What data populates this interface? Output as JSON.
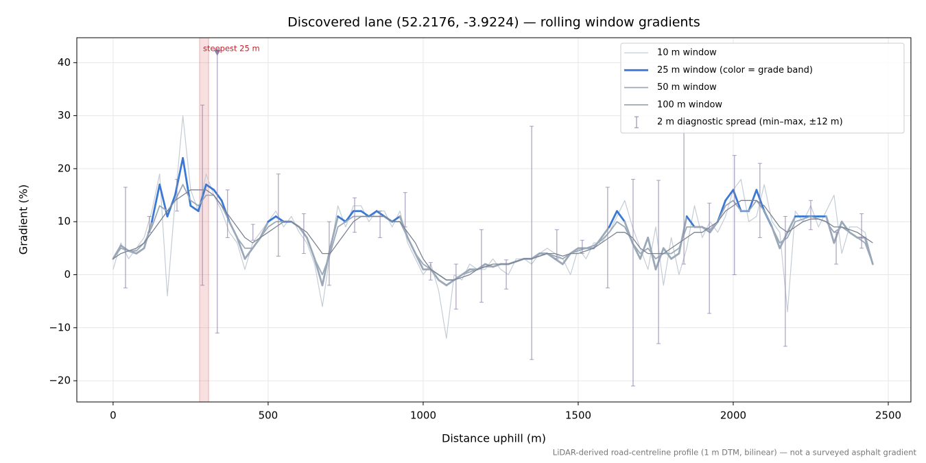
{
  "chart_data": {
    "type": "line",
    "title": "Discovered lane (52.2176, -3.9224) — rolling window gradients",
    "xlabel": "Distance uphill (m)",
    "ylabel": "Gradient (%)",
    "footnote": "LiDAR-derived road-centreline profile (1 m DTM, bilinear) — not a surveyed asphalt gradient",
    "xlim": [
      -117,
      2573
    ],
    "ylim": [
      -24,
      44.7
    ],
    "xticks": [
      0,
      500,
      1000,
      1500,
      2000,
      2500
    ],
    "yticks": [
      {
        "value": -20,
        "label": "−20"
      },
      {
        "value": -10,
        "label": "−10"
      },
      0,
      10,
      20,
      30,
      40
    ],
    "grid": true,
    "legend": "upper right",
    "x": [
      0,
      25,
      50,
      75,
      100,
      125,
      150,
      175,
      200,
      225,
      250,
      275,
      300,
      325,
      350,
      375,
      400,
      425,
      450,
      475,
      500,
      525,
      550,
      575,
      600,
      625,
      650,
      675,
      700,
      725,
      750,
      775,
      800,
      825,
      850,
      875,
      900,
      925,
      950,
      975,
      1000,
      1025,
      1050,
      1075,
      1100,
      1125,
      1150,
      1175,
      1200,
      1225,
      1250,
      1275,
      1300,
      1325,
      1350,
      1375,
      1400,
      1425,
      1450,
      1475,
      1500,
      1525,
      1550,
      1575,
      1600,
      1625,
      1650,
      1675,
      1700,
      1725,
      1750,
      1775,
      1800,
      1825,
      1850,
      1875,
      1900,
      1925,
      1950,
      1975,
      2000,
      2025,
      2050,
      2075,
      2100,
      2125,
      2150,
      2175,
      2200,
      2225,
      2250,
      2275,
      2300,
      2325,
      2350,
      2375,
      2400,
      2425,
      2450
    ],
    "series": [
      {
        "name": "10 m window",
        "color": "#c3ccd6",
        "width": 1.2,
        "values": [
          1,
          6,
          3,
          5,
          7,
          12,
          19,
          -4,
          14,
          30,
          16,
          12,
          19,
          15,
          12,
          8,
          6,
          1,
          6,
          8,
          10,
          12,
          9,
          11,
          8,
          6,
          2,
          -6,
          4,
          13,
          9,
          13,
          13,
          10,
          12,
          12,
          9,
          12,
          6,
          3,
          0,
          2,
          -3,
          -12,
          0,
          -1,
          2,
          1,
          1,
          3,
          1,
          0,
          3,
          3,
          2,
          4,
          5,
          4,
          3,
          0,
          5,
          3,
          6,
          6,
          8,
          11,
          14,
          9,
          5,
          1,
          9,
          -2,
          7,
          0,
          5,
          13,
          7,
          10,
          8,
          11,
          16,
          18,
          10,
          11,
          17,
          10,
          8,
          -7,
          12,
          10,
          13,
          9,
          12,
          15,
          4,
          9,
          9,
          8,
          2
        ]
      },
      {
        "name": "25 m window (color = grade band)",
        "color": "#3a78d4",
        "width": 2.8,
        "base_color": "#9aa8b8",
        "grade_bands": [
          {
            "min": 10,
            "color": "#3a78d4"
          },
          {
            "min": 20,
            "color": "#e08a00"
          }
        ],
        "values": [
          3,
          5.5,
          4.5,
          4,
          5,
          10,
          17,
          11,
          15,
          22,
          13,
          12,
          17,
          16,
          14,
          10,
          7,
          3,
          5,
          7,
          10,
          11,
          10,
          10,
          9,
          7,
          3,
          -2,
          5,
          11,
          10,
          12,
          12,
          11,
          12,
          11,
          10,
          11,
          7,
          4,
          1,
          1,
          -1,
          -2,
          -1,
          0,
          1,
          1,
          2,
          1.5,
          2,
          2,
          2.5,
          3,
          3,
          4,
          4,
          3,
          2,
          4,
          5,
          5,
          5,
          7,
          9,
          12,
          10,
          6,
          3,
          7,
          1,
          5,
          3,
          4,
          11,
          9,
          9,
          8,
          10,
          14,
          16,
          12,
          12,
          16,
          12,
          9,
          5,
          8,
          11,
          11,
          11,
          11,
          11,
          6,
          10,
          8,
          7,
          7,
          2
        ]
      },
      {
        "name": "50 m window",
        "color": "#9aa8b8",
        "width": 1.8,
        "values": [
          3,
          5,
          4.5,
          4.5,
          6,
          9,
          13,
          12,
          14,
          17,
          14,
          13,
          15,
          15,
          13,
          10,
          7,
          5,
          5,
          7,
          9,
          10,
          10,
          10,
          9,
          7,
          3,
          0,
          4,
          9,
          10,
          11,
          11,
          11,
          11,
          11,
          10,
          10,
          7,
          4,
          2,
          1,
          0,
          -1,
          -1,
          0,
          0.5,
          1,
          1.5,
          1.5,
          2,
          2,
          2.5,
          3,
          3,
          3.5,
          4,
          3.5,
          3,
          4,
          4.5,
          5,
          5.5,
          6.5,
          8,
          10,
          9,
          6,
          4,
          5,
          3,
          4,
          4,
          5,
          9,
          9,
          9,
          8.5,
          10,
          13,
          14,
          12,
          12,
          14,
          12,
          9,
          6,
          7,
          10,
          10.5,
          11,
          10.5,
          10,
          8,
          9,
          8,
          7,
          6,
          2
        ]
      },
      {
        "name": "100 m window",
        "color": "#7a8290",
        "width": 1.3,
        "values": [
          3,
          4,
          4.5,
          5,
          6,
          8,
          10,
          12,
          14,
          15,
          16,
          16,
          16,
          15,
          13,
          11,
          9,
          7,
          6,
          7,
          8,
          9,
          10,
          10,
          9,
          8,
          6,
          4,
          4,
          6,
          8,
          10,
          11,
          11,
          11,
          11,
          10,
          10,
          8,
          6,
          3,
          1,
          0,
          -1,
          -1,
          -0.5,
          0,
          1,
          1.5,
          2,
          2,
          2,
          2.5,
          3,
          3,
          3.5,
          4,
          4,
          3.5,
          4,
          4,
          4.5,
          5,
          6,
          7,
          8,
          8,
          7,
          5,
          4,
          4,
          4,
          5,
          6,
          7,
          8,
          8,
          9,
          10,
          12,
          13,
          14,
          14,
          14,
          13,
          11,
          9,
          8,
          9,
          10,
          10.5,
          10.5,
          10,
          9,
          9,
          8.5,
          8,
          7,
          6
        ]
      }
    ],
    "errorbars": {
      "name": "2 m diagnostic spread (min–max, ±12 m)",
      "color": "#8a80a8",
      "x": [
        40,
        117,
        206,
        288,
        336,
        369,
        451,
        533,
        615,
        697,
        779,
        861,
        942,
        1024,
        1106,
        1188,
        1268,
        1350,
        1431,
        1513,
        1595,
        1677,
        1759,
        1841,
        1923,
        2004,
        2086,
        2168,
        2250,
        2332,
        2414
      ],
      "low": [
        -2.5,
        8,
        12,
        -2,
        -11,
        7,
        6.5,
        3.5,
        4,
        -2,
        8,
        7,
        9,
        -1,
        -6.5,
        -5.2,
        -2.7,
        -16,
        3,
        4,
        -2.5,
        -21,
        -13,
        2,
        -7.3,
        0,
        7,
        -13.5,
        8.5,
        2,
        5
      ],
      "high": [
        16.5,
        11,
        18,
        32,
        42,
        16,
        9.5,
        19,
        11.5,
        10,
        14.5,
        12,
        15.5,
        2.3,
        2,
        8.5,
        2.8,
        28,
        8.5,
        6.5,
        16.5,
        18,
        17.8,
        28,
        13.5,
        22.5,
        21,
        11,
        14,
        8,
        11.5
      ]
    },
    "highlight": {
      "label": "steepest 25 m",
      "span": [
        279,
        308
      ],
      "color": "#e07070",
      "marker": [
        336,
        41.8
      ],
      "label_color": "#c0202a"
    }
  }
}
